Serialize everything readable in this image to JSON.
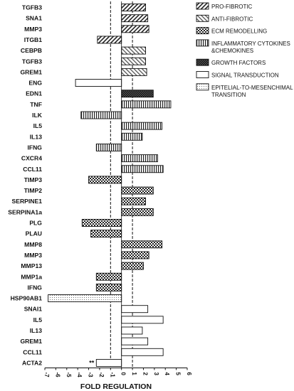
{
  "chart_data": {
    "type": "bar",
    "orientation": "horizontal",
    "xlabel": "FOLD REGULATION",
    "xlim": [
      -7,
      6
    ],
    "xticks": [
      -7,
      -6,
      -5,
      -4,
      -3,
      -2,
      -1,
      0,
      1,
      2,
      3,
      4,
      5,
      6
    ],
    "reference_lines": [
      -1,
      1
    ],
    "grid": false,
    "legend_position": "top-right",
    "legend": [
      {
        "key": "pro",
        "label": "PRO-FIBROTIC",
        "pattern": "stripes-diag"
      },
      {
        "key": "anti",
        "label": "ANTI-FIBROTIC",
        "pattern": "stripes-diag-light"
      },
      {
        "key": "ecm",
        "label": "ECM REMODELLING",
        "pattern": "checker"
      },
      {
        "key": "infl",
        "label": "INFLAMMATORY CYTOKINES\n&CHEMOKINES",
        "pattern": "vertical"
      },
      {
        "key": "gf",
        "label": "GROWTH FACTORS",
        "pattern": "checker-dark"
      },
      {
        "key": "sig",
        "label": "SIGNAL TRANSDUCTION",
        "pattern": "blank"
      },
      {
        "key": "emt",
        "label": "EPITELIAL-TO-MESENCHIMAL\nTRANSITION",
        "pattern": "dots"
      }
    ],
    "categories": [
      "TGFB3",
      "SNA1",
      "MMP3",
      "ITGB1",
      "CEBPB",
      "TGFB3",
      "GREM1",
      "ENG",
      "EDN1",
      "TNF",
      "ILK",
      "IL5",
      "IL13",
      "IFNG",
      "CXCR4",
      "CCL11",
      "TIMP3",
      "TIMP2",
      "SERPINE1",
      "SERPINA1a",
      "PLG",
      "PLAU",
      "MMP8",
      "MMP3",
      "MMP13",
      "MMP1a",
      "IFNG",
      "HSP90AB1",
      "SNAI1",
      "IL5",
      "IL13",
      "GREM1",
      "CCL11",
      "ACTA2"
    ],
    "values": [
      2.2,
      2.4,
      2.5,
      -2.2,
      2.2,
      2.2,
      2.3,
      -4.2,
      2.9,
      4.5,
      -3.7,
      3.7,
      1.9,
      -2.3,
      3.3,
      3.8,
      -3.0,
      2.9,
      2.2,
      2.9,
      -3.6,
      -2.8,
      3.7,
      2.5,
      2.0,
      -2.3,
      -2.3,
      -6.7,
      2.4,
      3.8,
      1.9,
      2.4,
      3.8,
      -2.3
    ],
    "groups": [
      "pro",
      "pro",
      "pro",
      "pro",
      "anti",
      "anti",
      "anti",
      "sig",
      "gf",
      "infl",
      "infl",
      "infl",
      "infl",
      "infl",
      "infl",
      "infl",
      "ecm",
      "ecm",
      "ecm",
      "ecm",
      "ecm",
      "ecm",
      "ecm",
      "ecm",
      "ecm",
      "ecm",
      "ecm",
      "emt",
      "sig",
      "sig",
      "sig",
      "sig",
      "sig",
      "sig"
    ],
    "annotations": [
      {
        "category_index": 33,
        "text": "**"
      }
    ]
  }
}
